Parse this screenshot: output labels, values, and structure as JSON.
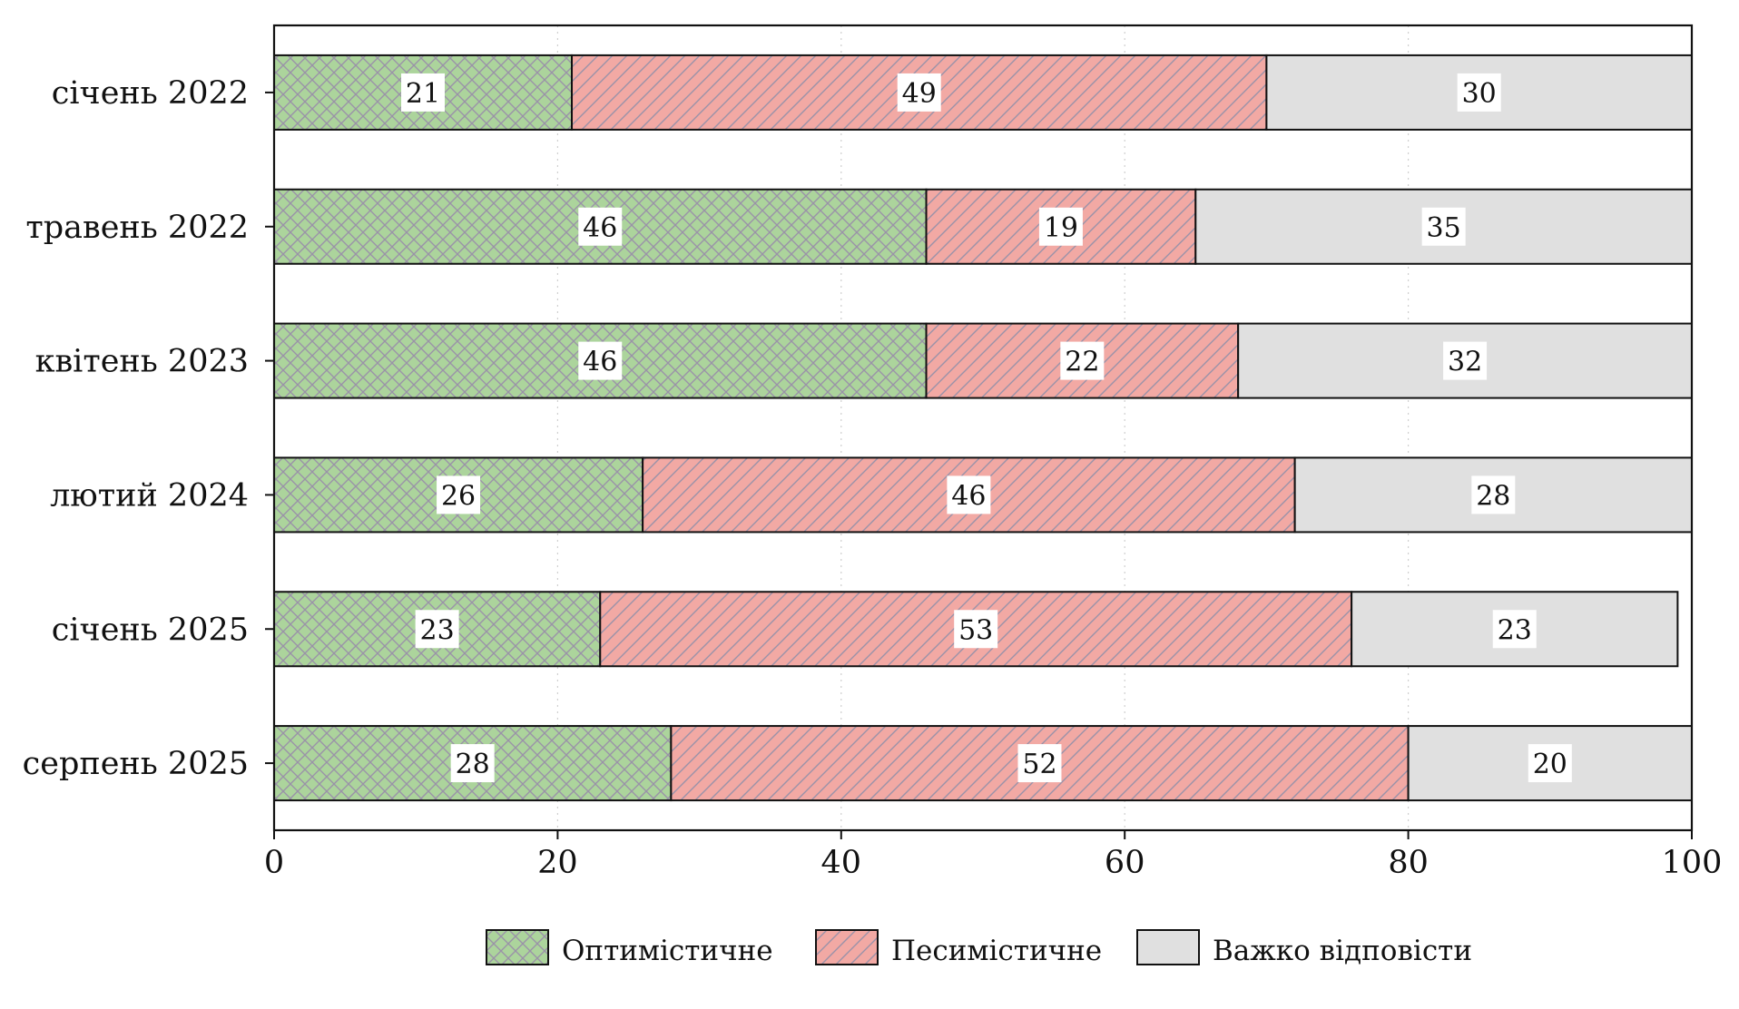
{
  "chart_data": {
    "type": "bar",
    "orientation": "horizontal",
    "stacked": true,
    "title": "",
    "xlabel": "",
    "ylabel": "",
    "xlim": [
      0,
      100
    ],
    "xticks": [
      0,
      20,
      40,
      60,
      80,
      100
    ],
    "grid": "vertical dotted",
    "legend_position": "bottom-center",
    "categories": [
      "січень 2022",
      "травень 2022",
      "квітень 2023",
      "лютий 2024",
      "січень 2025",
      "серпень 2025"
    ],
    "series": [
      {
        "name": "Оптимістичне",
        "values": [
          21,
          46,
          46,
          26,
          23,
          28
        ],
        "color": "#acd49c",
        "hatch_color": "#9a92a8",
        "hatch": "cross"
      },
      {
        "name": "Песимістичне",
        "values": [
          49,
          19,
          22,
          46,
          53,
          52
        ],
        "color": "#f2a9a4",
        "hatch_color": "#9a92a8",
        "hatch": "diagonal"
      },
      {
        "name": "Важко відповісти",
        "values": [
          30,
          35,
          32,
          28,
          23,
          20
        ],
        "color": "#e0e0e0",
        "hatch": "none"
      }
    ]
  }
}
